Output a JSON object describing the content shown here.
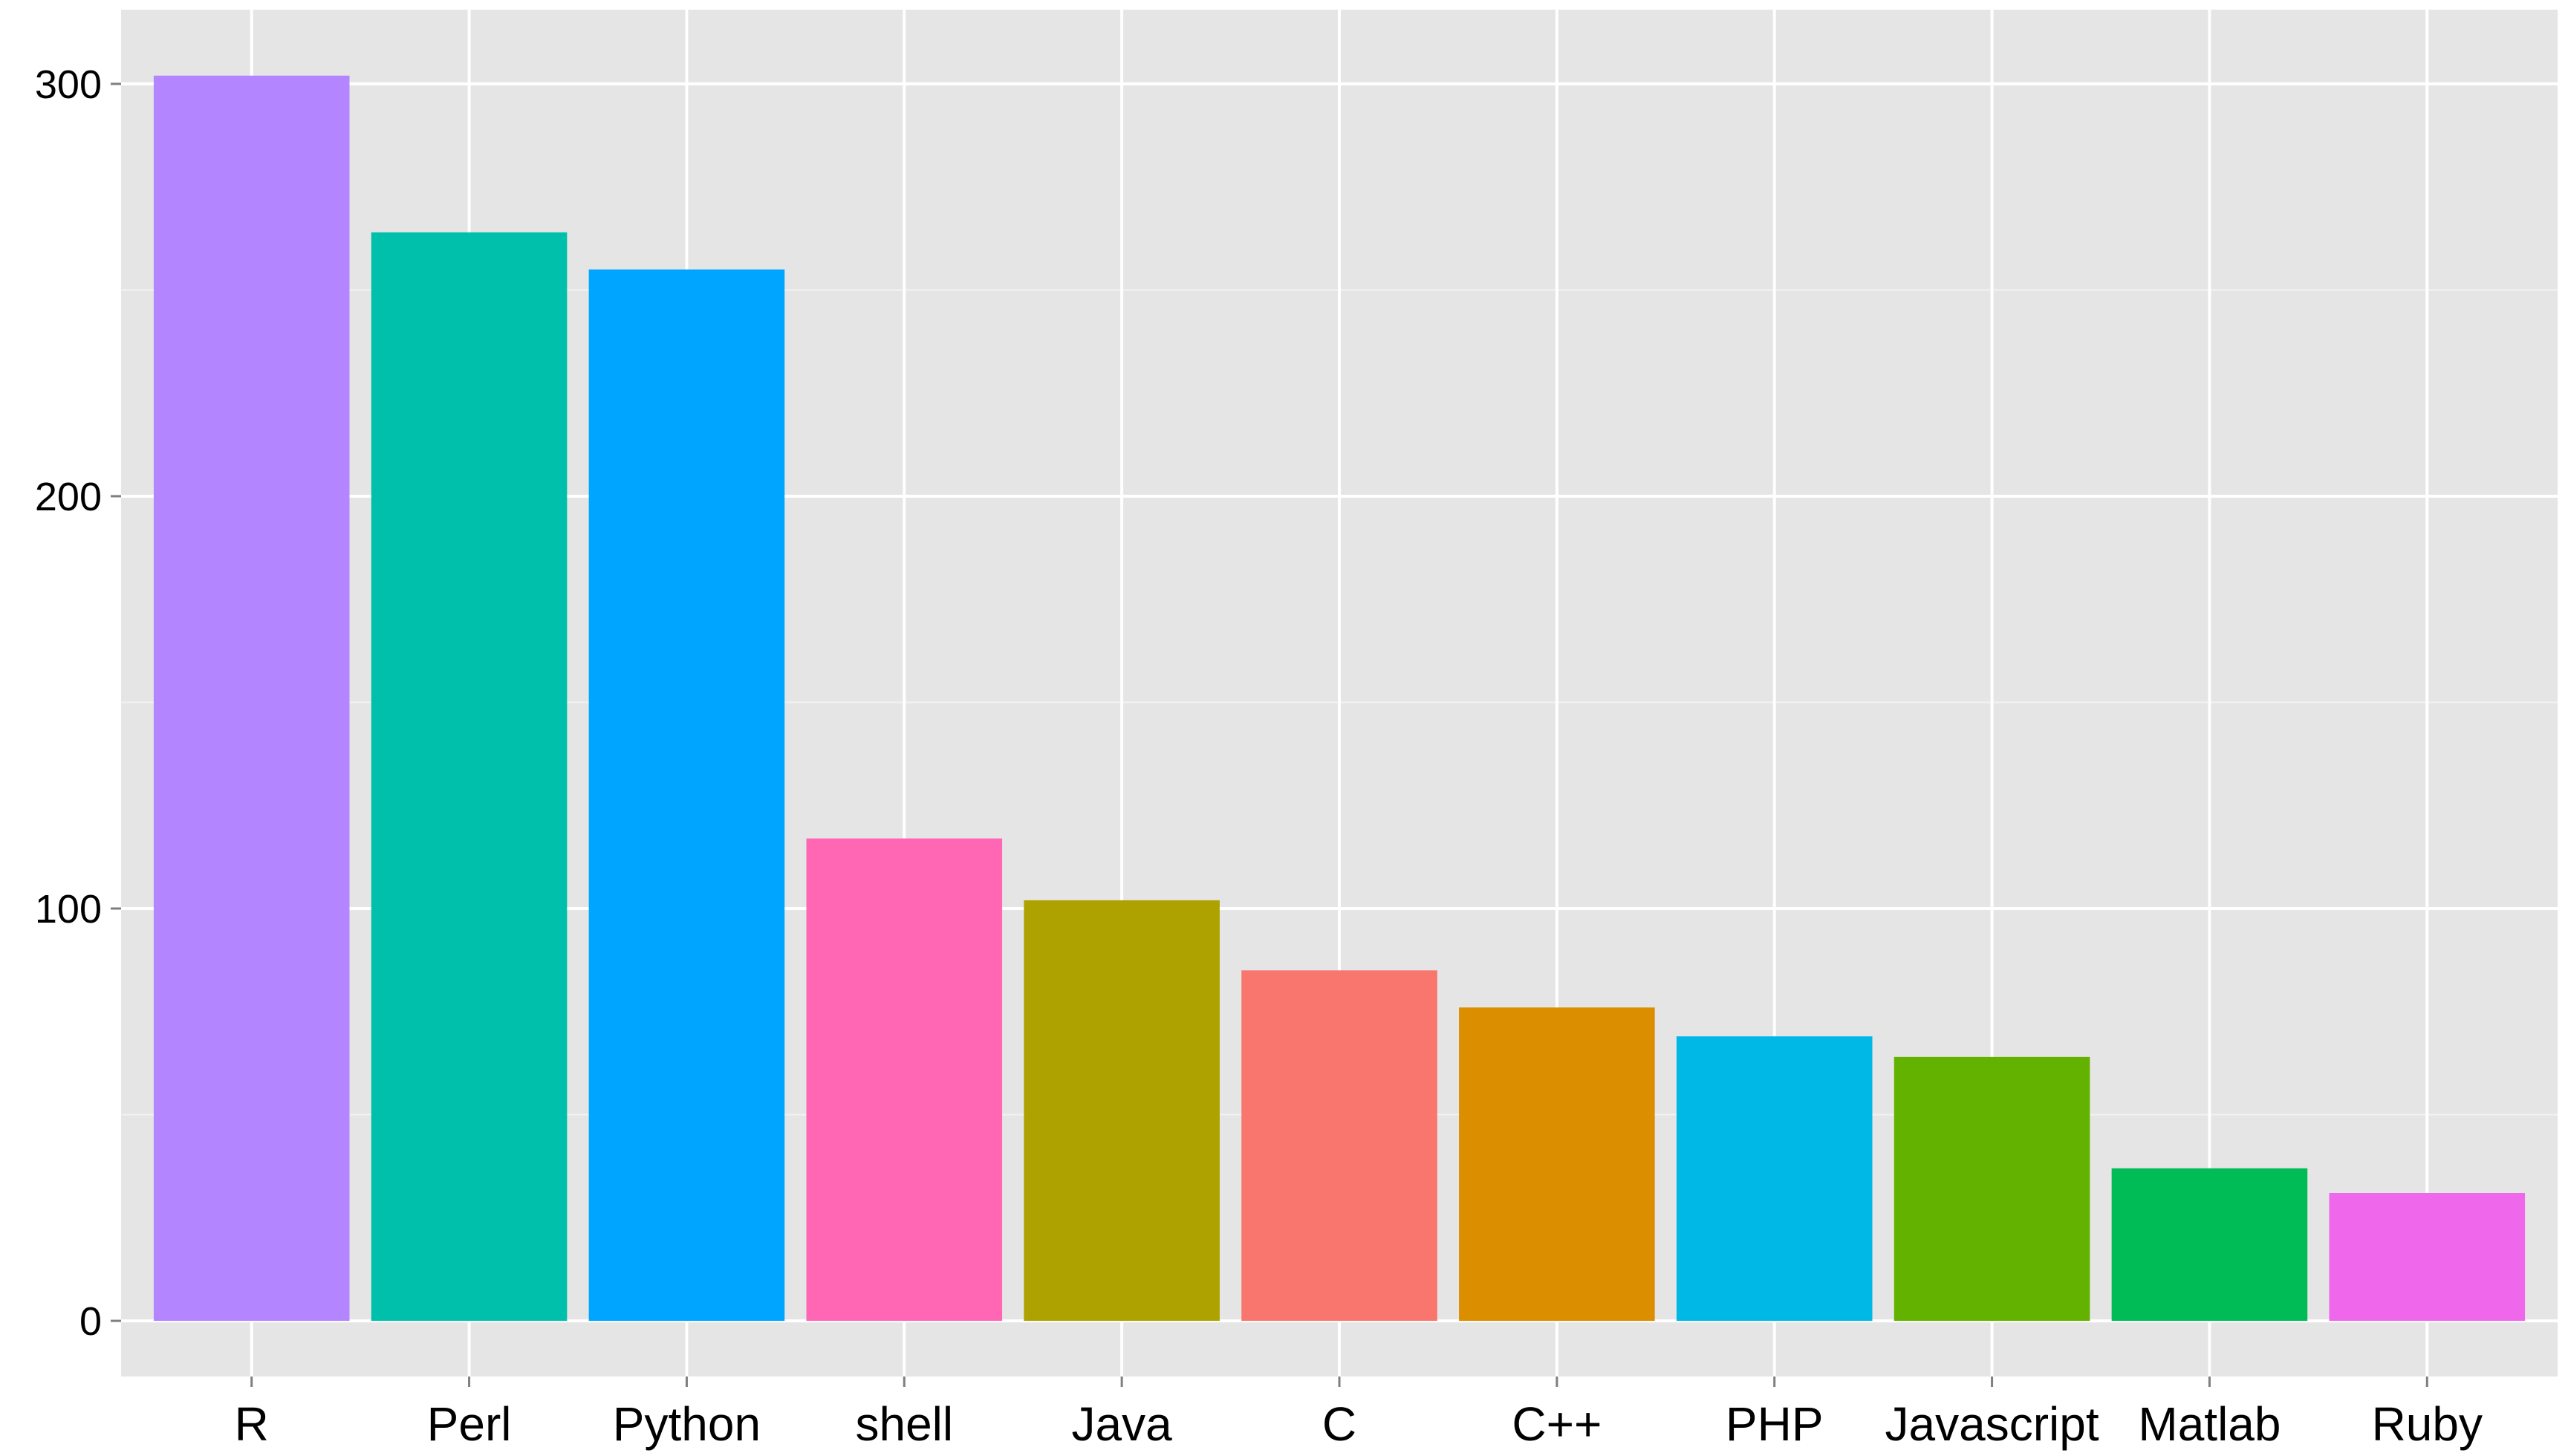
{
  "chart_data": {
    "type": "bar",
    "title": "",
    "xlabel": "",
    "ylabel": "",
    "categories": [
      "R",
      "Perl",
      "Python",
      "shell",
      "Java",
      "C",
      "C++",
      "PHP",
      "Javascript",
      "Matlab",
      "Ruby"
    ],
    "values": [
      302,
      264,
      255,
      117,
      102,
      85,
      76,
      69,
      64,
      37,
      31
    ],
    "colors": [
      "#B385FF",
      "#00C0AB",
      "#00A5FF",
      "#FF67B4",
      "#AEA200",
      "#F8766D",
      "#DB8E00",
      "#00B8E5",
      "#64B200",
      "#00BC56",
      "#EF67EB"
    ],
    "ylim": [
      -13.5,
      318
    ],
    "yticks": [
      0,
      100,
      200,
      300
    ],
    "ytick_labels": [
      "0",
      "100",
      "200",
      "300"
    ],
    "grid": true,
    "panel_background": "#E5E5E5",
    "grid_color": "#FFFFFF",
    "legend": "none"
  }
}
